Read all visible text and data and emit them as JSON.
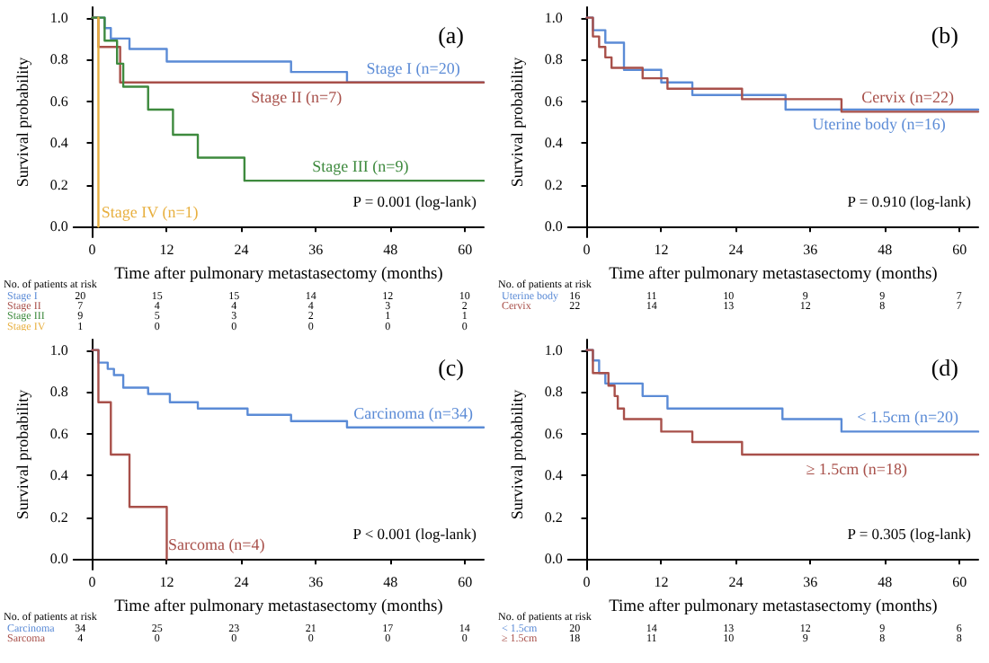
{
  "chart_data": [
    {
      "type": "step",
      "title": "(a)",
      "xlabel": "Time after pulmonary metastasectomy (months)",
      "ylabel": "Survival probability",
      "xlim": [
        -3,
        63
      ],
      "ylim": [
        -0.05,
        1.05
      ],
      "xticks": [
        0,
        12,
        24,
        36,
        48,
        60
      ],
      "yticks": [
        {
          "value": 0,
          "label": "0.0"
        },
        {
          "value": 0.2,
          "label": "0.2"
        },
        {
          "value": 0.4,
          "label": "0.4"
        },
        {
          "value": 0.6,
          "label": "0.6"
        },
        {
          "value": 0.8,
          "label": "0.8"
        },
        {
          "value": 1,
          "label": "1.0"
        }
      ],
      "marker": "none",
      "series": [
        {
          "name": "Stage I (n=20)",
          "color": "#5b8bd6",
          "x": [
            0,
            2,
            3,
            6,
            12,
            32,
            41,
            63
          ],
          "values": [
            1,
            0.95,
            0.9,
            0.85,
            0.79,
            0.74,
            0.69,
            0.69
          ]
        },
        {
          "name": "Stage II (n=7)",
          "color": "#a8504a",
          "x": [
            0,
            1,
            4.5,
            63
          ],
          "values": [
            1,
            0.86,
            0.69,
            0.69
          ]
        },
        {
          "name": "Stage III (n=9)",
          "color": "#3e8a3e",
          "x": [
            0,
            2,
            4,
            5,
            9,
            13,
            17,
            24.5,
            63
          ],
          "values": [
            1,
            0.89,
            0.78,
            0.67,
            0.56,
            0.44,
            0.33,
            0.22,
            0.22
          ]
        },
        {
          "name": "Stage IV (n=1)",
          "color": "#e8b040",
          "x": [
            1,
            1
          ],
          "values": [
            1,
            0
          ]
        }
      ],
      "annotations": [
        "P = 0.001 (log-lank)",
        "No. of patients at risk",
        "Stage I",
        "20 15 15 14 12 10",
        "Stage II",
        "7 4 4 4 3 2",
        "Stage III",
        "9 5 3 2 1 1",
        "Stage IV",
        "1 0 0 0 0 0"
      ]
    },
    {
      "type": "step",
      "title": "(b)",
      "xlabel": "Time after pulmonary metastasectomy (months)",
      "ylabel": "Survival probability",
      "xlim": [
        -3,
        63
      ],
      "ylim": [
        -0.05,
        1.05
      ],
      "xticks": [
        0,
        12,
        24,
        36,
        48,
        60
      ],
      "yticks": [
        {
          "value": 0,
          "label": "0.0"
        },
        {
          "value": 0.2,
          "label": "0.2"
        },
        {
          "value": 0.4,
          "label": "0.4"
        },
        {
          "value": 0.6,
          "label": "0.6"
        },
        {
          "value": 0.8,
          "label": "0.8"
        },
        {
          "value": 1,
          "label": "1.0"
        }
      ],
      "marker": "none",
      "series": [
        {
          "name": "Uterine body (n=16)",
          "color": "#5b8bd6",
          "x": [
            0,
            1,
            3,
            6,
            12,
            17,
            32,
            63
          ],
          "values": [
            1,
            0.94,
            0.88,
            0.75,
            0.69,
            0.63,
            0.56,
            0.56
          ]
        },
        {
          "name": "Cervix (n=22)",
          "color": "#a8504a",
          "x": [
            0,
            1,
            2,
            3,
            4,
            9,
            13,
            25,
            41,
            63
          ],
          "values": [
            1,
            0.91,
            0.86,
            0.81,
            0.76,
            0.71,
            0.66,
            0.61,
            0.55,
            0.55
          ]
        }
      ],
      "annotations": [
        "P = 0.910 (log-lank)",
        "No. of patients at risk",
        "Uterine body",
        "16 11 10 9 9 7",
        "Cervix",
        "22 14 13 12 8 7"
      ]
    },
    {
      "type": "step",
      "title": "(c)",
      "xlabel": "Time after pulmonary metastasectomy (months)",
      "ylabel": "Survival probability",
      "xlim": [
        -3,
        63
      ],
      "ylim": [
        -0.05,
        1.05
      ],
      "xticks": [
        0,
        12,
        24,
        36,
        48,
        60
      ],
      "yticks": [
        {
          "value": 0,
          "label": "0.0"
        },
        {
          "value": 0.2,
          "label": "0.2"
        },
        {
          "value": 0.4,
          "label": "0.4"
        },
        {
          "value": 0.6,
          "label": "0.6"
        },
        {
          "value": 0.8,
          "label": "0.8"
        },
        {
          "value": 1,
          "label": "1.0"
        }
      ],
      "marker": "none",
      "series": [
        {
          "name": "Carcinoma (n=34)",
          "color": "#5b8bd6",
          "x": [
            0,
            1,
            2.5,
            3.5,
            5,
            9,
            12.5,
            17,
            25,
            32,
            41,
            63
          ],
          "values": [
            1,
            0.94,
            0.91,
            0.88,
            0.82,
            0.79,
            0.75,
            0.72,
            0.69,
            0.66,
            0.63,
            0.63
          ]
        },
        {
          "name": "Sarcoma (n=4)",
          "color": "#a8504a",
          "x": [
            0,
            1,
            3,
            6,
            12
          ],
          "values": [
            1,
            0.75,
            0.5,
            0.25,
            0
          ]
        }
      ],
      "annotations": [
        "P < 0.001 (log-lank)",
        "No. of patients at risk",
        "Carcinoma",
        "34 25 23 21 17 14",
        "Sarcoma",
        "4 0 0 0 0 0"
      ]
    },
    {
      "type": "step",
      "title": "(d)",
      "xlabel": "Time after pulmonary metastasectomy (months)",
      "ylabel": "Survival probability",
      "xlim": [
        -3,
        63
      ],
      "ylim": [
        -0.05,
        1.05
      ],
      "xticks": [
        0,
        12,
        24,
        36,
        48,
        60
      ],
      "yticks": [
        {
          "value": 0,
          "label": "0.0"
        },
        {
          "value": 0.2,
          "label": "0.2"
        },
        {
          "value": 0.4,
          "label": "0.4"
        },
        {
          "value": 0.6,
          "label": "0.6"
        },
        {
          "value": 0.8,
          "label": "0.8"
        },
        {
          "value": 1,
          "label": "1.0"
        }
      ],
      "marker": "none",
      "series": [
        {
          "name": "< 1.5cm (n=20)",
          "color": "#5b8bd6",
          "x": [
            0,
            1,
            2,
            3,
            9,
            13,
            31.5,
            41,
            63
          ],
          "values": [
            1,
            0.95,
            0.89,
            0.84,
            0.78,
            0.72,
            0.67,
            0.61,
            0.61
          ]
        },
        {
          "name": "≥ 1.5cm (n=18)",
          "color": "#a8504a",
          "x": [
            0,
            1,
            3.5,
            4.5,
            5,
            6,
            12,
            17,
            25,
            63
          ],
          "values": [
            1,
            0.89,
            0.83,
            0.78,
            0.72,
            0.67,
            0.61,
            0.56,
            0.5,
            0.5
          ]
        }
      ],
      "annotations": [
        "P = 0.305 (log-lank)",
        "No. of patients at risk",
        "< 1.5cm",
        "20 14 13 12 9 6",
        "≥ 1.5cm",
        "18 11 10 9 8 8"
      ]
    }
  ]
}
